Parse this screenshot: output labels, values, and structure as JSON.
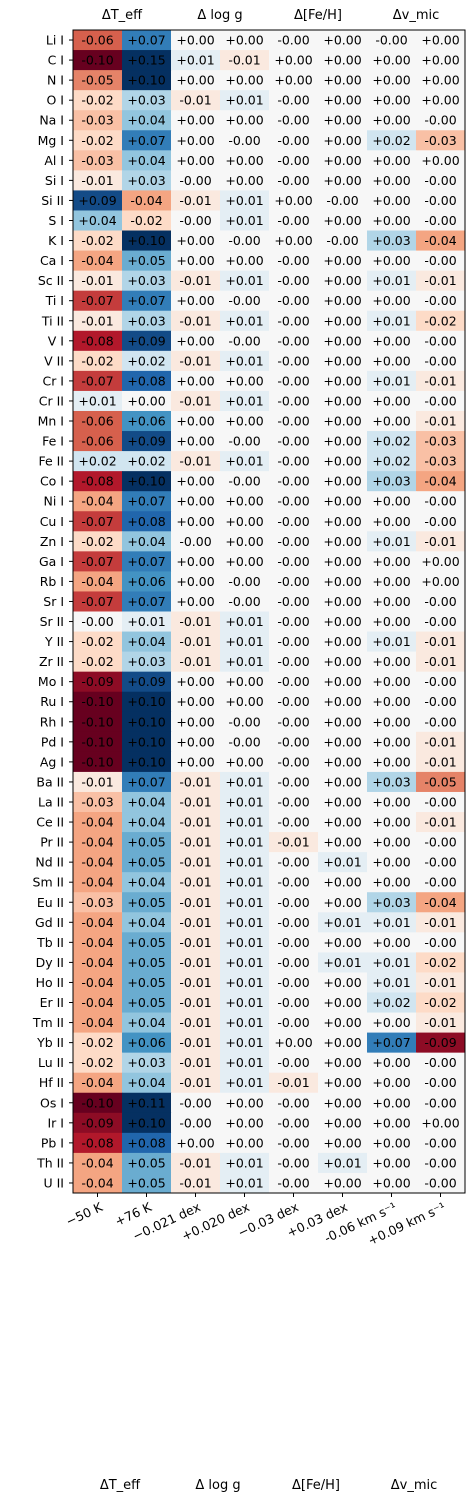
{
  "chart_data": {
    "type": "heatmap",
    "top_labels": [
      "ΔT_eff",
      "Δ log g",
      "Δ[Fe/H]",
      "Δv_mic"
    ],
    "bottom_group_labels": [
      "ΔT_eff",
      "Δ log g",
      "Δ[Fe/H]",
      "Δv_mic"
    ],
    "x_tick_labels": [
      "−50 K",
      "+76 K",
      "−0.021 dex",
      "+0.020 dex",
      "−0.03 dex",
      "+0.03 dex",
      "-0.06 km s⁻¹",
      "+0.09 km s⁻¹"
    ],
    "color_scale": {
      "cmap": "RdBu",
      "vmin": -0.1,
      "vmax": 0.1
    },
    "rows": [
      {
        "label": "Li I",
        "values": [
          "-0.06",
          "+0.07",
          "+0.00",
          "+0.00",
          "-0.00",
          "+0.00",
          "-0.00",
          "+0.00"
        ]
      },
      {
        "label": "C I",
        "values": [
          "-0.10",
          "+0.15",
          "+0.01",
          "-0.01",
          "+0.00",
          "+0.00",
          "+0.00",
          "+0.00"
        ]
      },
      {
        "label": "N I",
        "values": [
          "-0.05",
          "+0.10",
          "+0.00",
          "+0.00",
          "+0.00",
          "+0.00",
          "+0.00",
          "+0.00"
        ]
      },
      {
        "label": "O I",
        "values": [
          "-0.02",
          "+0.03",
          "-0.01",
          "+0.01",
          "-0.00",
          "+0.00",
          "+0.00",
          "+0.00"
        ]
      },
      {
        "label": "Na I",
        "values": [
          "-0.03",
          "+0.04",
          "+0.00",
          "+0.00",
          "-0.00",
          "+0.00",
          "+0.00",
          "-0.00"
        ]
      },
      {
        "label": "Mg I",
        "values": [
          "-0.02",
          "+0.07",
          "+0.00",
          "-0.00",
          "-0.00",
          "+0.00",
          "+0.02",
          "-0.03"
        ]
      },
      {
        "label": "Al I",
        "values": [
          "-0.03",
          "+0.04",
          "+0.00",
          "+0.00",
          "-0.00",
          "+0.00",
          "+0.00",
          "+0.00"
        ]
      },
      {
        "label": "Si I",
        "values": [
          "-0.01",
          "+0.03",
          "-0.00",
          "+0.00",
          "-0.00",
          "+0.00",
          "+0.00",
          "-0.00"
        ]
      },
      {
        "label": "Si II",
        "values": [
          "+0.09",
          "-0.04",
          "-0.01",
          "+0.01",
          "+0.00",
          "-0.00",
          "+0.00",
          "-0.00"
        ]
      },
      {
        "label": "S I",
        "values": [
          "+0.04",
          "-0.02",
          "-0.00",
          "+0.01",
          "-0.00",
          "+0.00",
          "+0.00",
          "-0.00"
        ]
      },
      {
        "label": "K I",
        "values": [
          "-0.02",
          "+0.10",
          "+0.00",
          "-0.00",
          "+0.00",
          "-0.00",
          "+0.03",
          "-0.04"
        ]
      },
      {
        "label": "Ca I",
        "values": [
          "-0.04",
          "+0.05",
          "+0.00",
          "+0.00",
          "-0.00",
          "+0.00",
          "+0.00",
          "-0.00"
        ]
      },
      {
        "label": "Sc II",
        "values": [
          "-0.01",
          "+0.03",
          "-0.01",
          "+0.01",
          "-0.00",
          "+0.00",
          "+0.01",
          "-0.01"
        ]
      },
      {
        "label": "Ti I",
        "values": [
          "-0.07",
          "+0.07",
          "+0.00",
          "-0.00",
          "-0.00",
          "+0.00",
          "+0.00",
          "-0.00"
        ]
      },
      {
        "label": "Ti II",
        "values": [
          "-0.01",
          "+0.03",
          "-0.01",
          "+0.01",
          "-0.00",
          "+0.00",
          "+0.01",
          "-0.02"
        ]
      },
      {
        "label": "V I",
        "values": [
          "-0.08",
          "+0.09",
          "+0.00",
          "-0.00",
          "-0.00",
          "+0.00",
          "+0.00",
          "-0.00"
        ]
      },
      {
        "label": "V II",
        "values": [
          "-0.02",
          "+0.02",
          "-0.01",
          "+0.01",
          "-0.00",
          "+0.00",
          "+0.00",
          "-0.00"
        ]
      },
      {
        "label": "Cr I",
        "values": [
          "-0.07",
          "+0.08",
          "+0.00",
          "+0.00",
          "-0.00",
          "+0.00",
          "+0.01",
          "-0.01"
        ]
      },
      {
        "label": "Cr II",
        "values": [
          "+0.01",
          "+0.00",
          "-0.01",
          "+0.01",
          "-0.00",
          "+0.00",
          "+0.00",
          "-0.00"
        ]
      },
      {
        "label": "Mn I",
        "values": [
          "-0.06",
          "+0.06",
          "+0.00",
          "+0.00",
          "-0.00",
          "+0.00",
          "+0.00",
          "-0.01"
        ]
      },
      {
        "label": "Fe I",
        "values": [
          "-0.06",
          "+0.09",
          "+0.00",
          "-0.00",
          "-0.00",
          "+0.00",
          "+0.02",
          "-0.03"
        ]
      },
      {
        "label": "Fe II",
        "values": [
          "+0.02",
          "+0.02",
          "-0.01",
          "+0.01",
          "-0.00",
          "+0.00",
          "+0.02",
          "-0.03"
        ]
      },
      {
        "label": "Co I",
        "values": [
          "-0.08",
          "+0.10",
          "+0.00",
          "-0.00",
          "-0.00",
          "+0.00",
          "+0.03",
          "-0.04"
        ]
      },
      {
        "label": "Ni I",
        "values": [
          "-0.04",
          "+0.07",
          "+0.00",
          "+0.00",
          "-0.00",
          "+0.00",
          "+0.00",
          "-0.00"
        ]
      },
      {
        "label": "Cu I",
        "values": [
          "-0.07",
          "+0.08",
          "+0.00",
          "+0.00",
          "-0.00",
          "+0.00",
          "+0.00",
          "-0.00"
        ]
      },
      {
        "label": "Zn I",
        "values": [
          "-0.02",
          "+0.04",
          "-0.00",
          "+0.00",
          "-0.00",
          "+0.00",
          "+0.01",
          "-0.01"
        ]
      },
      {
        "label": "Ga I",
        "values": [
          "-0.07",
          "+0.07",
          "+0.00",
          "+0.00",
          "-0.00",
          "+0.00",
          "+0.00",
          "+0.00"
        ]
      },
      {
        "label": "Rb I",
        "values": [
          "-0.04",
          "+0.06",
          "+0.00",
          "-0.00",
          "-0.00",
          "+0.00",
          "+0.00",
          "+0.00"
        ]
      },
      {
        "label": "Sr I",
        "values": [
          "-0.07",
          "+0.07",
          "+0.00",
          "-0.00",
          "-0.00",
          "+0.00",
          "+0.00",
          "-0.00"
        ]
      },
      {
        "label": "Sr II",
        "values": [
          "-0.00",
          "+0.01",
          "-0.01",
          "+0.01",
          "-0.00",
          "+0.00",
          "+0.00",
          "-0.00"
        ]
      },
      {
        "label": "Y II",
        "values": [
          "-0.02",
          "+0.04",
          "-0.01",
          "+0.01",
          "-0.00",
          "+0.00",
          "+0.01",
          "-0.01"
        ]
      },
      {
        "label": "Zr II",
        "values": [
          "-0.02",
          "+0.03",
          "-0.01",
          "+0.01",
          "-0.00",
          "+0.00",
          "+0.00",
          "-0.01"
        ]
      },
      {
        "label": "Mo I",
        "values": [
          "-0.09",
          "+0.09",
          "+0.00",
          "+0.00",
          "-0.00",
          "+0.00",
          "+0.00",
          "-0.00"
        ]
      },
      {
        "label": "Ru I",
        "values": [
          "-0.10",
          "+0.10",
          "+0.00",
          "+0.00",
          "-0.00",
          "+0.00",
          "+0.00",
          "-0.00"
        ]
      },
      {
        "label": "Rh I",
        "values": [
          "-0.10",
          "+0.10",
          "+0.00",
          "-0.00",
          "-0.00",
          "+0.00",
          "+0.00",
          "-0.00"
        ]
      },
      {
        "label": "Pd I",
        "values": [
          "-0.10",
          "+0.10",
          "+0.00",
          "-0.00",
          "-0.00",
          "+0.00",
          "+0.00",
          "-0.01"
        ]
      },
      {
        "label": "Ag I",
        "values": [
          "-0.10",
          "+0.10",
          "+0.00",
          "+0.00",
          "-0.00",
          "+0.00",
          "+0.00",
          "-0.01"
        ]
      },
      {
        "label": "Ba II",
        "values": [
          "-0.01",
          "+0.07",
          "-0.01",
          "+0.01",
          "-0.00",
          "+0.00",
          "+0.03",
          "-0.05"
        ]
      },
      {
        "label": "La II",
        "values": [
          "-0.03",
          "+0.04",
          "-0.01",
          "+0.01",
          "-0.00",
          "+0.00",
          "+0.00",
          "-0.00"
        ]
      },
      {
        "label": "Ce II",
        "values": [
          "-0.04",
          "+0.04",
          "-0.01",
          "+0.01",
          "-0.00",
          "+0.00",
          "+0.00",
          "-0.01"
        ]
      },
      {
        "label": "Pr II",
        "values": [
          "-0.04",
          "+0.05",
          "-0.01",
          "+0.01",
          "-0.01",
          "+0.00",
          "+0.00",
          "-0.00"
        ]
      },
      {
        "label": "Nd II",
        "values": [
          "-0.04",
          "+0.05",
          "-0.01",
          "+0.01",
          "-0.00",
          "+0.01",
          "+0.00",
          "-0.00"
        ]
      },
      {
        "label": "Sm II",
        "values": [
          "-0.04",
          "+0.04",
          "-0.01",
          "+0.01",
          "-0.00",
          "+0.00",
          "+0.00",
          "-0.00"
        ]
      },
      {
        "label": "Eu II",
        "values": [
          "-0.03",
          "+0.05",
          "-0.01",
          "+0.01",
          "-0.00",
          "+0.00",
          "+0.03",
          "-0.04"
        ]
      },
      {
        "label": "Gd II",
        "values": [
          "-0.04",
          "+0.04",
          "-0.01",
          "+0.01",
          "-0.00",
          "+0.01",
          "+0.01",
          "-0.01"
        ]
      },
      {
        "label": "Tb II",
        "values": [
          "-0.04",
          "+0.05",
          "-0.01",
          "+0.01",
          "-0.00",
          "+0.00",
          "+0.00",
          "-0.00"
        ]
      },
      {
        "label": "Dy II",
        "values": [
          "-0.04",
          "+0.05",
          "-0.01",
          "+0.01",
          "-0.00",
          "+0.01",
          "+0.01",
          "-0.02"
        ]
      },
      {
        "label": "Ho II",
        "values": [
          "-0.04",
          "+0.05",
          "-0.01",
          "+0.01",
          "-0.00",
          "+0.00",
          "+0.01",
          "-0.01"
        ]
      },
      {
        "label": "Er II",
        "values": [
          "-0.04",
          "+0.05",
          "-0.01",
          "+0.01",
          "-0.00",
          "+0.00",
          "+0.02",
          "-0.02"
        ]
      },
      {
        "label": "Tm II",
        "values": [
          "-0.04",
          "+0.04",
          "-0.01",
          "+0.01",
          "-0.00",
          "+0.00",
          "+0.00",
          "-0.01"
        ]
      },
      {
        "label": "Yb II",
        "values": [
          "-0.02",
          "+0.06",
          "-0.01",
          "+0.01",
          "+0.00",
          "+0.00",
          "+0.07",
          "-0.09"
        ]
      },
      {
        "label": "Lu II",
        "values": [
          "-0.02",
          "+0.03",
          "-0.01",
          "+0.01",
          "-0.00",
          "+0.00",
          "+0.00",
          "-0.00"
        ]
      },
      {
        "label": "Hf II",
        "values": [
          "-0.04",
          "+0.04",
          "-0.01",
          "+0.01",
          "-0.01",
          "+0.00",
          "+0.00",
          "-0.00"
        ]
      },
      {
        "label": "Os I",
        "values": [
          "-0.10",
          "+0.11",
          "-0.00",
          "+0.00",
          "-0.00",
          "+0.00",
          "+0.00",
          "-0.00"
        ]
      },
      {
        "label": "Ir I",
        "values": [
          "-0.09",
          "+0.10",
          "-0.00",
          "+0.00",
          "-0.00",
          "+0.00",
          "+0.00",
          "+0.00"
        ]
      },
      {
        "label": "Pb I",
        "values": [
          "-0.08",
          "+0.08",
          "+0.00",
          "+0.00",
          "-0.00",
          "+0.00",
          "+0.00",
          "-0.00"
        ]
      },
      {
        "label": "Th II",
        "values": [
          "-0.04",
          "+0.05",
          "-0.01",
          "+0.01",
          "-0.00",
          "+0.01",
          "+0.00",
          "-0.00"
        ]
      },
      {
        "label": "U II",
        "values": [
          "-0.04",
          "+0.05",
          "-0.01",
          "+0.01",
          "-0.00",
          "+0.00",
          "+0.00",
          "-0.00"
        ]
      }
    ]
  }
}
